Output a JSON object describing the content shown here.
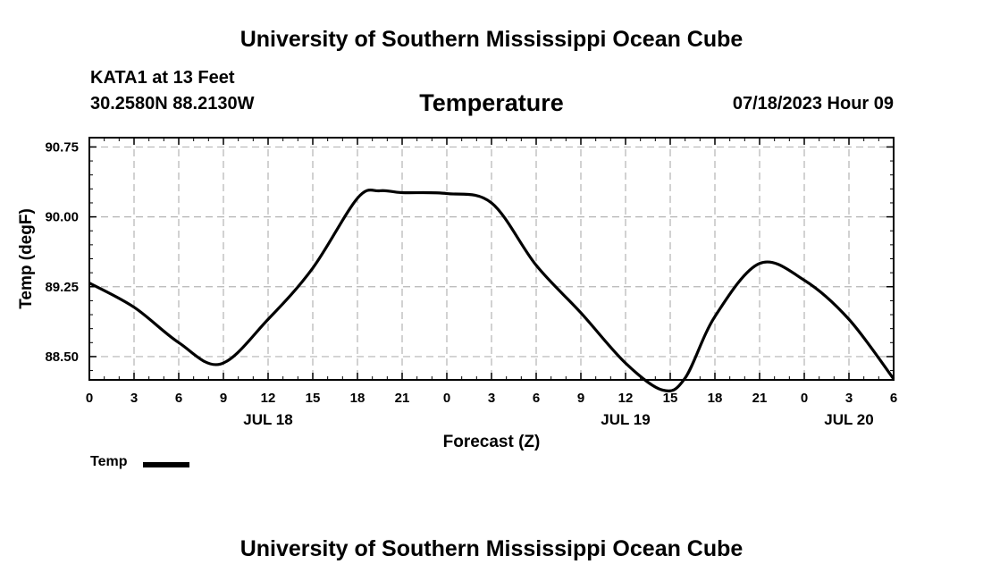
{
  "header": {
    "title": "University of Southern Mississippi Ocean Cube"
  },
  "station": {
    "name": "KATA1 at 13 Feet",
    "coords": "30.2580N  88.2130W"
  },
  "timestamp": "07/18/2023 Hour 09",
  "legend": {
    "label": "Temp",
    "color": "#000000"
  },
  "footer": {
    "title": "University of Southern Mississippi Ocean Cube"
  },
  "chart_data": {
    "type": "line",
    "title": "Temperature",
    "xlabel": "Forecast (Z)",
    "ylabel": "Temp (degF)",
    "xlim": [
      0,
      54
    ],
    "ylim": [
      88.25,
      90.85
    ],
    "grid": true,
    "x_ticks": [
      {
        "x": 0,
        "label": "0"
      },
      {
        "x": 3,
        "label": "3"
      },
      {
        "x": 6,
        "label": "6"
      },
      {
        "x": 9,
        "label": "9"
      },
      {
        "x": 12,
        "label": "12"
      },
      {
        "x": 15,
        "label": "15"
      },
      {
        "x": 18,
        "label": "18"
      },
      {
        "x": 21,
        "label": "21"
      },
      {
        "x": 24,
        "label": "0"
      },
      {
        "x": 27,
        "label": "3"
      },
      {
        "x": 30,
        "label": "6"
      },
      {
        "x": 33,
        "label": "9"
      },
      {
        "x": 36,
        "label": "12"
      },
      {
        "x": 39,
        "label": "15"
      },
      {
        "x": 42,
        "label": "18"
      },
      {
        "x": 45,
        "label": "21"
      },
      {
        "x": 48,
        "label": "0"
      },
      {
        "x": 51,
        "label": "3"
      },
      {
        "x": 54,
        "label": "6"
      }
    ],
    "date_labels": [
      {
        "x": 12,
        "label": "JUL 18"
      },
      {
        "x": 36,
        "label": "JUL 19"
      },
      {
        "x": 51,
        "label": "JUL 20"
      }
    ],
    "y_ticks": [
      {
        "y": 88.5,
        "label": "88.50"
      },
      {
        "y": 89.25,
        "label": "89.25"
      },
      {
        "y": 90.0,
        "label": "90.00"
      },
      {
        "y": 90.75,
        "label": "90.75"
      }
    ],
    "series": [
      {
        "name": "Temp",
        "x": [
          0,
          3,
          6,
          8.8,
          12,
          15,
          18,
          19.5,
          21,
          24,
          27,
          30,
          33,
          36,
          38.5,
          40,
          42,
          45,
          48,
          51,
          54
        ],
        "values": [
          89.29,
          89.03,
          88.65,
          88.42,
          88.9,
          89.45,
          90.2,
          90.28,
          90.26,
          90.25,
          90.15,
          89.48,
          88.97,
          88.43,
          88.14,
          88.27,
          88.93,
          89.5,
          89.32,
          88.9,
          88.26
        ]
      }
    ]
  }
}
